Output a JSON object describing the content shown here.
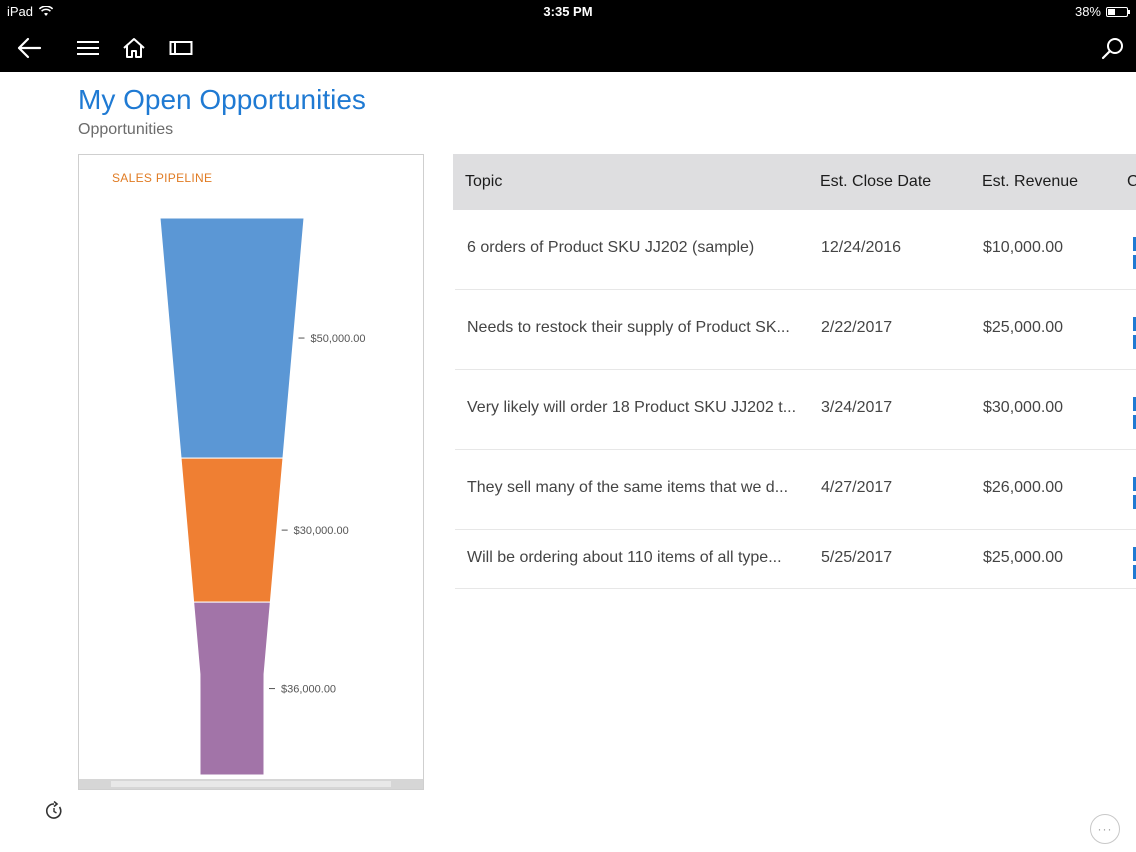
{
  "status_bar": {
    "device": "iPad",
    "time": "3:35 PM",
    "battery_text": "38%",
    "battery_level": 0.38
  },
  "nav": {
    "icons": [
      "back-arrow-icon",
      "hamburger-menu-icon",
      "home-icon",
      "panel-icon",
      "search-icon"
    ]
  },
  "header": {
    "title": "My Open Opportunities",
    "subtitle": "Opportunities"
  },
  "chart_data": {
    "type": "funnel",
    "title": "SALES PIPELINE",
    "stages": [
      {
        "label": "$50,000.00",
        "value": 50000,
        "color": "#5b97d5"
      },
      {
        "label": "$30,000.00",
        "value": 30000,
        "color": "#ef7f33"
      },
      {
        "label": "$36,000.00",
        "value": 36000,
        "color": "#a274a8"
      }
    ]
  },
  "grid": {
    "columns": [
      "Topic",
      "Est. Close Date",
      "Est. Revenue",
      "C"
    ],
    "rows": [
      {
        "topic": "6 orders of Product SKU JJ202 (sample)",
        "close_date": "12/24/2016",
        "revenue": "$10,000.00"
      },
      {
        "topic": "Needs to restock their supply of Product SK...",
        "close_date": "2/22/2017",
        "revenue": "$25,000.00"
      },
      {
        "topic": "Very likely will order 18 Product SKU JJ202 t...",
        "close_date": "3/24/2017",
        "revenue": "$30,000.00"
      },
      {
        "topic": "They sell many of the same items that we d...",
        "close_date": "4/27/2017",
        "revenue": "$26,000.00"
      },
      {
        "topic": "Will be ordering about 110 items of all type...",
        "close_date": "5/25/2017",
        "revenue": "$25,000.00"
      }
    ]
  },
  "footer": {
    "more_label": "···"
  }
}
